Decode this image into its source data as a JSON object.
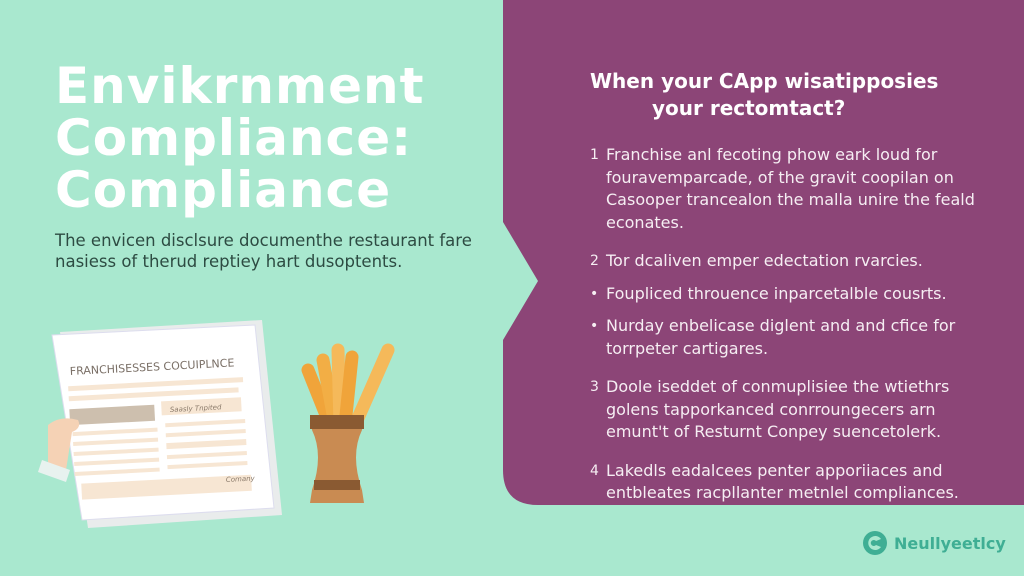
{
  "colors": {
    "background": "#a9e8cf",
    "panel": "#8c4577",
    "brand": "#3fae94"
  },
  "title": {
    "line1": "Envikrnment",
    "line2": "Compliance:",
    "line3": "Compliance"
  },
  "subtitle": "The envicen disclsure documenthe restaurant fare nasiess of therud reptiey hart dusoptents.",
  "document": {
    "heading": "FRANCHISESSES COCUIPLNCE",
    "note": "Saasly Tnpited",
    "footer": "Comany"
  },
  "panel": {
    "heading_line1": "When your CApp wisatipposies",
    "heading_line2": "your rectomtact?",
    "items": [
      {
        "marker": "1",
        "text": "Franchise anl fecoting phow eark loud for fouravemparcade, of the gravit coopilan on Casooper trancealon the malla unire the feald econates."
      },
      {
        "marker": "2",
        "text": "Tor dcaliven emper edectation rvarcies."
      },
      {
        "marker": "•",
        "text": "Foupliced throuence inparcetalble cousrts."
      },
      {
        "marker": "•",
        "text": "Nurday enbelicase diglent and and cfice for torrpeter cartigares."
      },
      {
        "marker": "3",
        "text": "Doole iseddet of conmuplisiee the wtiethrs golens tapporkanced conrroungecers arn emunt't of Resturnt Conpey suencetolerk."
      },
      {
        "marker": "4",
        "text": "Lakedls eadalcees penter apporiiaces and entbleates racpllanter metnlel compliances."
      }
    ]
  },
  "brand": {
    "name": "Neullyeetlcy",
    "icon": "spiral-logo-icon"
  }
}
